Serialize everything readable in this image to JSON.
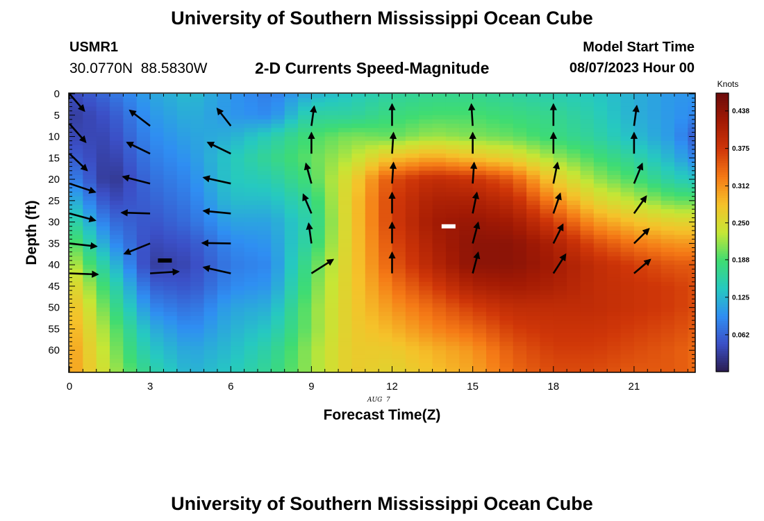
{
  "header": {
    "title": "University of Southern Mississippi Ocean Cube",
    "station_name": "USMR1",
    "station_coords": "30.0770N  88.5830W",
    "plot_title": "2-D Currents Speed-Magnitude",
    "model_start_label": "Model Start Time",
    "model_start_value": "08/07/2023 Hour 00"
  },
  "footer": {
    "title": "University of Southern Mississippi Ocean Cube"
  },
  "chart_data": {
    "type": "heatmap",
    "xlabel": "Forecast Time(Z)",
    "ylabel": "Depth (ft)",
    "date_label": "AUG  7",
    "xlim": [
      0,
      23.25
    ],
    "ylim": [
      0,
      65
    ],
    "x_ticks": [
      0,
      3,
      6,
      9,
      12,
      15,
      18,
      21
    ],
    "y_ticks": [
      0,
      5,
      10,
      15,
      20,
      25,
      30,
      35,
      40,
      45,
      50,
      55,
      60
    ],
    "colorbar": {
      "title": "Knots",
      "range": [
        0,
        0.468
      ],
      "tick_labels": [
        "0.062",
        "0.125",
        "0.188",
        "0.250",
        "0.312",
        "0.375",
        "0.438"
      ],
      "tick_values": [
        0.062,
        0.125,
        0.188,
        0.25,
        0.312,
        0.375,
        0.438
      ],
      "colors": [
        "#2a1b4e",
        "#3b4fc6",
        "#2f8ef2",
        "#26c9c0",
        "#3fdc72",
        "#c6e635",
        "#f5c22a",
        "#f57a16",
        "#cf3608",
        "#a21a04",
        "#6c0b0b"
      ]
    },
    "time_steps": [
      0,
      0.5,
      1,
      1.5,
      2,
      2.5,
      3,
      3.5,
      4,
      4.5,
      5,
      5.5,
      6,
      6.5,
      7,
      7.5,
      8,
      8.5,
      9,
      9.5,
      10,
      10.5,
      11,
      11.5,
      12,
      12.5,
      13,
      13.5,
      14,
      14.5,
      15,
      15.5,
      16,
      16.5,
      17,
      17.5,
      18,
      18.5,
      19,
      19.5,
      20,
      20.5,
      21,
      21.5,
      22,
      22.5,
      23
    ],
    "depth_levels": [
      0,
      5,
      10,
      15,
      20,
      25,
      30,
      35,
      40,
      45,
      50,
      55,
      60,
      65
    ],
    "speed_profiles": [
      {
        "t": 0,
        "values": [
          0.04,
          0.03,
          0.04,
          0.06,
          0.09,
          0.13,
          0.17,
          0.21,
          0.24,
          0.27,
          0.29,
          0.3,
          0.31,
          0.31
        ]
      },
      {
        "t": 1.5,
        "values": [
          0.07,
          0.05,
          0.04,
          0.03,
          0.02,
          0.04,
          0.07,
          0.1,
          0.14,
          0.17,
          0.19,
          0.21,
          0.22,
          0.23
        ]
      },
      {
        "t": 3,
        "values": [
          0.11,
          0.1,
          0.09,
          0.08,
          0.07,
          0.06,
          0.05,
          0.04,
          0.03,
          0.06,
          0.09,
          0.12,
          0.14,
          0.16
        ]
      },
      {
        "t": 4.5,
        "values": [
          0.13,
          0.12,
          0.11,
          0.1,
          0.09,
          0.08,
          0.07,
          0.05,
          0.04,
          0.05,
          0.07,
          0.09,
          0.11,
          0.12
        ]
      },
      {
        "t": 6,
        "values": [
          0.1,
          0.1,
          0.12,
          0.14,
          0.14,
          0.13,
          0.11,
          0.09,
          0.08,
          0.09,
          0.11,
          0.12,
          0.13,
          0.14
        ]
      },
      {
        "t": 7.5,
        "values": [
          0.08,
          0.09,
          0.15,
          0.17,
          0.15,
          0.13,
          0.11,
          0.1,
          0.09,
          0.1,
          0.12,
          0.14,
          0.16,
          0.17
        ]
      },
      {
        "t": 9,
        "values": [
          0.12,
          0.16,
          0.19,
          0.2,
          0.19,
          0.17,
          0.16,
          0.17,
          0.19,
          0.2,
          0.21,
          0.21,
          0.22,
          0.22
        ]
      },
      {
        "t": 10.5,
        "values": [
          0.14,
          0.16,
          0.21,
          0.23,
          0.26,
          0.27,
          0.27,
          0.27,
          0.27,
          0.27,
          0.27,
          0.27,
          0.27,
          0.27
        ]
      },
      {
        "t": 12,
        "values": [
          0.16,
          0.18,
          0.2,
          0.28,
          0.36,
          0.37,
          0.37,
          0.36,
          0.35,
          0.33,
          0.31,
          0.29,
          0.27,
          0.26
        ]
      },
      {
        "t": 13.5,
        "values": [
          0.17,
          0.19,
          0.22,
          0.3,
          0.39,
          0.41,
          0.42,
          0.41,
          0.4,
          0.37,
          0.34,
          0.32,
          0.29,
          0.28
        ]
      },
      {
        "t": 15,
        "values": [
          0.17,
          0.19,
          0.21,
          0.28,
          0.38,
          0.41,
          0.43,
          0.44,
          0.44,
          0.41,
          0.37,
          0.34,
          0.31,
          0.3
        ]
      },
      {
        "t": 16.5,
        "values": [
          0.16,
          0.18,
          0.2,
          0.26,
          0.35,
          0.39,
          0.42,
          0.44,
          0.44,
          0.42,
          0.39,
          0.37,
          0.35,
          0.34
        ]
      },
      {
        "t": 18,
        "values": [
          0.15,
          0.17,
          0.18,
          0.22,
          0.27,
          0.32,
          0.37,
          0.41,
          0.42,
          0.41,
          0.39,
          0.38,
          0.37,
          0.36
        ]
      },
      {
        "t": 19.5,
        "values": [
          0.14,
          0.15,
          0.16,
          0.19,
          0.22,
          0.26,
          0.31,
          0.36,
          0.39,
          0.39,
          0.39,
          0.38,
          0.37,
          0.36
        ]
      },
      {
        "t": 21,
        "values": [
          0.12,
          0.12,
          0.13,
          0.16,
          0.19,
          0.23,
          0.28,
          0.33,
          0.37,
          0.38,
          0.38,
          0.37,
          0.36,
          0.35
        ]
      },
      {
        "t": 22.5,
        "values": [
          0.1,
          0.1,
          0.1,
          0.12,
          0.15,
          0.2,
          0.26,
          0.31,
          0.35,
          0.37,
          0.37,
          0.36,
          0.35,
          0.35
        ]
      },
      {
        "t": 23.25,
        "values": [
          0.1,
          0.09,
          0.06,
          0.09,
          0.14,
          0.2,
          0.26,
          0.31,
          0.35,
          0.36,
          0.36,
          0.35,
          0.34,
          0.34
        ]
      }
    ],
    "vectors": [
      {
        "t": 0,
        "depth": 0,
        "dx": 0.55,
        "dy": 4.0
      },
      {
        "t": 0,
        "depth": 7,
        "dx": 0.6,
        "dy": 4.3
      },
      {
        "t": 0,
        "depth": 14,
        "dx": 0.65,
        "dy": 3.9
      },
      {
        "t": 0,
        "depth": 21,
        "dx": 0.95,
        "dy": 2.0
      },
      {
        "t": 0,
        "depth": 28,
        "dx": 0.95,
        "dy": 1.6
      },
      {
        "t": 0,
        "depth": 35,
        "dx": 1.0,
        "dy": 0.7
      },
      {
        "t": 0,
        "depth": 42,
        "dx": 1.05,
        "dy": 0.25
      },
      {
        "t": 3,
        "depth": 7.5,
        "dx": -0.75,
        "dy": -3.6
      },
      {
        "t": 3,
        "depth": 14,
        "dx": -0.85,
        "dy": -2.6
      },
      {
        "t": 3,
        "depth": 21,
        "dx": -1.0,
        "dy": -1.6
      },
      {
        "t": 3,
        "depth": 28,
        "dx": -1.05,
        "dy": -0.2
      },
      {
        "t": 3,
        "depth": 35,
        "dx": -0.95,
        "dy": 2.4
      },
      {
        "t": 3,
        "depth": 42,
        "dx": 1.05,
        "dy": -0.4
      },
      {
        "t": 6,
        "depth": 7.5,
        "dx": -0.5,
        "dy": -4.0
      },
      {
        "t": 6,
        "depth": 14,
        "dx": -0.85,
        "dy": -2.6
      },
      {
        "t": 6,
        "depth": 21,
        "dx": -1.0,
        "dy": -1.4
      },
      {
        "t": 6,
        "depth": 28,
        "dx": -1.0,
        "dy": -0.6
      },
      {
        "t": 6,
        "depth": 35,
        "dx": -1.05,
        "dy": -0.1
      },
      {
        "t": 6,
        "depth": 42,
        "dx": -1.0,
        "dy": -1.4
      },
      {
        "t": 9,
        "depth": 7.5,
        "dx": 0.1,
        "dy": -4.5
      },
      {
        "t": 9,
        "depth": 14,
        "dx": 0.0,
        "dy": -4.8
      },
      {
        "t": 9,
        "depth": 21,
        "dx": -0.2,
        "dy": -4.6
      },
      {
        "t": 9,
        "depth": 28,
        "dx": -0.3,
        "dy": -4.4
      },
      {
        "t": 9,
        "depth": 35,
        "dx": -0.1,
        "dy": -4.6
      },
      {
        "t": 9,
        "depth": 42,
        "dx": 0.8,
        "dy": -3.2
      },
      {
        "t": 12,
        "depth": 7.5,
        "dx": 0.0,
        "dy": -5.0
      },
      {
        "t": 12,
        "depth": 14,
        "dx": 0.05,
        "dy": -4.8
      },
      {
        "t": 12,
        "depth": 21,
        "dx": 0.05,
        "dy": -4.8
      },
      {
        "t": 12,
        "depth": 28,
        "dx": 0.0,
        "dy": -4.8
      },
      {
        "t": 12,
        "depth": 35,
        "dx": 0.0,
        "dy": -4.8
      },
      {
        "t": 12,
        "depth": 42,
        "dx": 0.0,
        "dy": -4.8
      },
      {
        "t": 15,
        "depth": 7.5,
        "dx": -0.05,
        "dy": -5.0
      },
      {
        "t": 15,
        "depth": 14,
        "dx": 0.0,
        "dy": -4.8
      },
      {
        "t": 15,
        "depth": 21,
        "dx": 0.05,
        "dy": -4.8
      },
      {
        "t": 15,
        "depth": 28,
        "dx": 0.15,
        "dy": -4.8
      },
      {
        "t": 15,
        "depth": 35,
        "dx": 0.2,
        "dy": -4.8
      },
      {
        "t": 15,
        "depth": 42,
        "dx": 0.2,
        "dy": -4.8
      },
      {
        "t": 18,
        "depth": 7.5,
        "dx": 0.0,
        "dy": -5.0
      },
      {
        "t": 18,
        "depth": 14,
        "dx": 0.0,
        "dy": -4.8
      },
      {
        "t": 18,
        "depth": 21,
        "dx": 0.15,
        "dy": -4.8
      },
      {
        "t": 18,
        "depth": 28,
        "dx": 0.25,
        "dy": -4.6
      },
      {
        "t": 18,
        "depth": 35,
        "dx": 0.35,
        "dy": -4.4
      },
      {
        "t": 18,
        "depth": 42,
        "dx": 0.45,
        "dy": -4.4
      },
      {
        "t": 21,
        "depth": 7.5,
        "dx": 0.1,
        "dy": -4.6
      },
      {
        "t": 21,
        "depth": 14,
        "dx": 0.0,
        "dy": -4.8
      },
      {
        "t": 21,
        "depth": 21,
        "dx": 0.3,
        "dy": -4.6
      },
      {
        "t": 21,
        "depth": 28,
        "dx": 0.45,
        "dy": -4.0
      },
      {
        "t": 21,
        "depth": 35,
        "dx": 0.55,
        "dy": -3.4
      },
      {
        "t": 21,
        "depth": 42,
        "dx": 0.6,
        "dy": -3.2
      }
    ],
    "markers": [
      {
        "t": 3.55,
        "depth": 39,
        "color": "#000000"
      },
      {
        "t": 14.1,
        "depth": 31,
        "color": "#ffffff"
      }
    ]
  }
}
